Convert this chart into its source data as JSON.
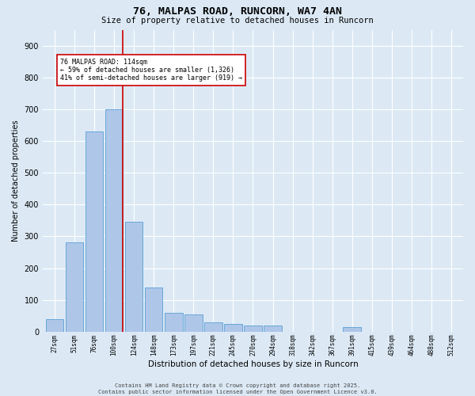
{
  "title_line1": "76, MALPAS ROAD, RUNCORN, WA7 4AN",
  "title_line2": "Size of property relative to detached houses in Runcorn",
  "xlabel": "Distribution of detached houses by size in Runcorn",
  "ylabel": "Number of detached properties",
  "bar_labels": [
    "27sqm",
    "51sqm",
    "76sqm",
    "100sqm",
    "124sqm",
    "148sqm",
    "173sqm",
    "197sqm",
    "221sqm",
    "245sqm",
    "270sqm",
    "294sqm",
    "318sqm",
    "342sqm",
    "367sqm",
    "391sqm",
    "415sqm",
    "439sqm",
    "464sqm",
    "488sqm",
    "512sqm"
  ],
  "bar_values": [
    40,
    280,
    630,
    700,
    345,
    140,
    60,
    55,
    30,
    25,
    20,
    20,
    0,
    0,
    0,
    15,
    0,
    0,
    0,
    0,
    0
  ],
  "bar_color": "#aec6e8",
  "bar_edge_color": "#5a9fd4",
  "background_color": "#dce9f5",
  "grid_color": "#ffffff",
  "red_line_index": 3,
  "red_line_color": "#cc0000",
  "annotation_text": "76 MALPAS ROAD: 114sqm\n← 59% of detached houses are smaller (1,326)\n41% of semi-detached houses are larger (919) →",
  "annotation_box_color": "#ffffff",
  "annotation_border_color": "#cc0000",
  "ylim": [
    0,
    950
  ],
  "yticks": [
    0,
    100,
    200,
    300,
    400,
    500,
    600,
    700,
    800,
    900
  ],
  "footer_line1": "Contains HM Land Registry data © Crown copyright and database right 2025.",
  "footer_line2": "Contains public sector information licensed under the Open Government Licence v3.0."
}
